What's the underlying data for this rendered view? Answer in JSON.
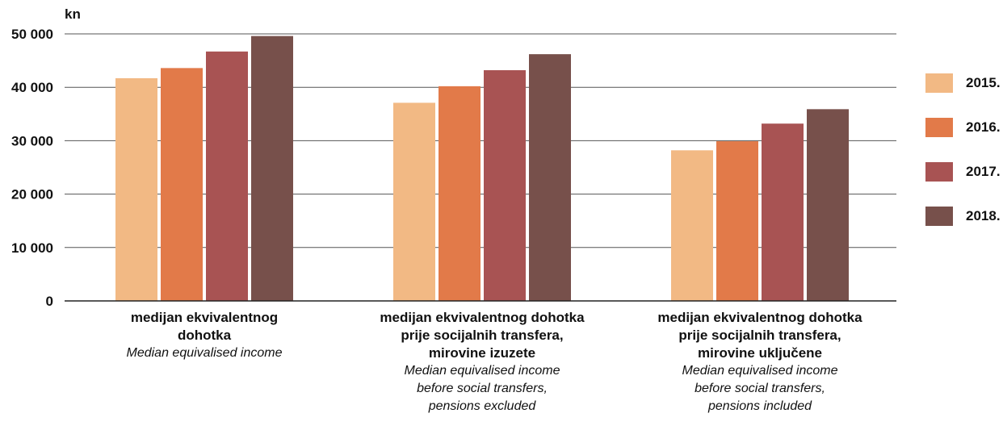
{
  "chart_data": {
    "type": "bar",
    "unit": "kn",
    "ylim": [
      0,
      50000
    ],
    "yticks": [
      0,
      10000,
      20000,
      30000,
      40000,
      50000
    ],
    "ytick_labels": [
      "0",
      "10 000",
      "20 000",
      "30 000",
      "40 000",
      "50 000"
    ],
    "grid": true,
    "legend_position": "right",
    "categories": [
      {
        "label_hr": [
          "medijan ekvivalentnog",
          "dohotka"
        ],
        "label_en": [
          "Median equivalised income"
        ]
      },
      {
        "label_hr": [
          "medijan ekvivalentnog dohotka",
          "prije socijalnih transfera,",
          "mirovine izuzete"
        ],
        "label_en": [
          "Median equivalised income",
          "before social transfers,",
          "pensions excluded"
        ]
      },
      {
        "label_hr": [
          "medijan ekvivalentnog dohotka",
          "prije socijalnih transfera,",
          "mirovine uključene"
        ],
        "label_en": [
          "Median equivalised income",
          "before social transfers,",
          "pensions included"
        ]
      }
    ],
    "series": [
      {
        "name": "2015.",
        "color": "#f2b984",
        "values": [
          41700,
          37100,
          28200
        ]
      },
      {
        "name": "2016.",
        "color": "#e27a49",
        "values": [
          43600,
          40200,
          29900
        ]
      },
      {
        "name": "2017.",
        "color": "#a85353",
        "values": [
          46700,
          43200,
          33200
        ]
      },
      {
        "name": "2018.",
        "color": "#77504b",
        "values": [
          49600,
          46200,
          35900
        ]
      }
    ]
  }
}
